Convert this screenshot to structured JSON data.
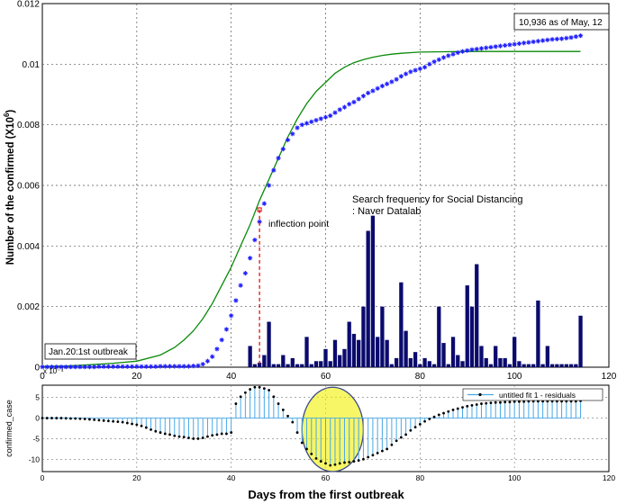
{
  "figure": {
    "xlabel": "Days from the first outbreak"
  },
  "chart_data": [
    {
      "type": "scatter",
      "ylabel": "Number of the confirmed (X10",
      "ylabel_exp": "6",
      "ylabel_close": ")",
      "xlim": [
        0,
        120
      ],
      "ylim": [
        0,
        0.012
      ],
      "xticks": [
        "0",
        "20",
        "40",
        "60",
        "80",
        "100",
        "120"
      ],
      "yticks": [
        "0",
        "0.002",
        "0.004",
        "0.006",
        "0.008",
        "0.01",
        "0.012"
      ],
      "grid": true,
      "colors": {
        "confirmed": "#2020ff",
        "fit": "#0a8a0a",
        "bars": "#0a0a6e",
        "inflection": "#e00000"
      },
      "series": [
        {
          "role": "confirmed",
          "x": [
            0,
            1,
            2,
            3,
            4,
            5,
            6,
            7,
            8,
            9,
            10,
            11,
            12,
            13,
            14,
            15,
            16,
            17,
            18,
            19,
            20,
            21,
            22,
            23,
            24,
            25,
            26,
            27,
            28,
            29,
            30,
            31,
            32,
            33,
            34,
            35,
            36,
            37,
            38,
            39,
            40,
            41,
            42,
            43,
            44,
            45,
            46,
            47,
            48,
            49,
            50,
            51,
            52,
            53,
            54,
            55,
            56,
            57,
            58,
            59,
            60,
            61,
            62,
            63,
            64,
            65,
            66,
            67,
            68,
            69,
            70,
            71,
            72,
            73,
            74,
            75,
            76,
            77,
            78,
            79,
            80,
            81,
            82,
            83,
            84,
            85,
            86,
            87,
            88,
            89,
            90,
            91,
            92,
            93,
            94,
            95,
            96,
            97,
            98,
            99,
            100,
            101,
            102,
            103,
            104,
            105,
            106,
            107,
            108,
            109,
            110,
            111,
            112,
            113,
            114
          ],
          "y": [
            1e-05,
            1e-05,
            1e-05,
            1e-05,
            1e-05,
            1e-05,
            1e-05,
            1e-05,
            1e-05,
            1e-05,
            1e-05,
            1e-05,
            2e-05,
            2e-05,
            2e-05,
            2e-05,
            2e-05,
            2e-05,
            2e-05,
            2e-05,
            2e-05,
            2e-05,
            2e-05,
            2e-05,
            2e-05,
            3e-05,
            3e-05,
            3e-05,
            3e-05,
            3e-05,
            3e-05,
            3e-05,
            4e-05,
            5e-05,
            0.0001,
            0.0002,
            0.00035,
            0.0006,
            0.0009,
            0.00125,
            0.0017,
            0.0022,
            0.0027,
            0.0031,
            0.0036,
            0.0042,
            0.0048,
            0.0054,
            0.006,
            0.0065,
            0.0069,
            0.0072,
            0.0075,
            0.0077,
            0.0079,
            0.008,
            0.00805,
            0.0081,
            0.00815,
            0.0082,
            0.00825,
            0.0083,
            0.0084,
            0.0085,
            0.00858,
            0.00868,
            0.00875,
            0.00885,
            0.00895,
            0.00905,
            0.00912,
            0.0092,
            0.00928,
            0.00935,
            0.00942,
            0.0095,
            0.0096,
            0.00968,
            0.00975,
            0.0098,
            0.00985,
            0.0099,
            0.01,
            0.01008,
            0.01015,
            0.01022,
            0.01028,
            0.01033,
            0.01038,
            0.01042,
            0.01045,
            0.01048,
            0.0105,
            0.01052,
            0.01054,
            0.01056,
            0.01058,
            0.0106,
            0.01062,
            0.01064,
            0.01066,
            0.01068,
            0.0107,
            0.01072,
            0.01074,
            0.01076,
            0.01078,
            0.0108,
            0.01082,
            0.01083,
            0.01084,
            0.01086,
            0.01088,
            0.01091,
            0.01094
          ]
        },
        {
          "role": "fit",
          "x": [
            0,
            5,
            10,
            15,
            20,
            25,
            28,
            30,
            32,
            34,
            36,
            38,
            40,
            42,
            44,
            46,
            48,
            50,
            52,
            54,
            56,
            58,
            60,
            62,
            64,
            66,
            68,
            70,
            72,
            74,
            76,
            78,
            80,
            85,
            90,
            95,
            100,
            105,
            110,
            114
          ],
          "y": [
            2e-05,
            4e-05,
            8e-05,
            0.00013,
            0.0002,
            0.0004,
            0.00065,
            0.0009,
            0.0012,
            0.0016,
            0.0021,
            0.0027,
            0.0033,
            0.004,
            0.0047,
            0.0055,
            0.0062,
            0.0069,
            0.0076,
            0.0082,
            0.0087,
            0.0091,
            0.0094,
            0.0097,
            0.0099,
            0.01005,
            0.01015,
            0.01023,
            0.01029,
            0.01033,
            0.01036,
            0.01038,
            0.0104,
            0.01041,
            0.01042,
            0.01042,
            0.01042,
            0.01042,
            0.01042,
            0.01042
          ]
        },
        {
          "role": "search-frequency-bars",
          "x": [
            44,
            45,
            46,
            47,
            48,
            49,
            50,
            51,
            52,
            53,
            54,
            55,
            56,
            57,
            58,
            59,
            60,
            61,
            62,
            63,
            64,
            65,
            66,
            67,
            68,
            69,
            70,
            71,
            72,
            73,
            74,
            75,
            76,
            77,
            78,
            79,
            80,
            81,
            82,
            83,
            84,
            85,
            86,
            87,
            88,
            89,
            90,
            91,
            92,
            93,
            94,
            95,
            96,
            97,
            98,
            99,
            100,
            101,
            102,
            103,
            104,
            105,
            106,
            107,
            108,
            109,
            110,
            111,
            112,
            113,
            114
          ],
          "y": [
            0.0007,
            0.0001,
            0.00015,
            0.0004,
            0.0015,
            0.0001,
            0.0001,
            0.0004,
            0.0001,
            0.0003,
            0.0001,
            0.0001,
            0.001,
            0.0001,
            0.0002,
            0.0002,
            0.0006,
            0.0002,
            0.0009,
            0.0004,
            0.0006,
            0.0015,
            0.0011,
            0.0009,
            0.002,
            0.0045,
            0.005,
            0.001,
            0.002,
            0.0009,
            0.0001,
            0.0003,
            0.0028,
            0.0012,
            0.0003,
            0.0005,
            0.0001,
            0.0003,
            0.0002,
            0.0001,
            0.002,
            0.0008,
            0.0001,
            0.001,
            0.0004,
            0.0002,
            0.0027,
            0.002,
            0.0034,
            0.0007,
            0.0003,
            0.0001,
            0.0007,
            0.0003,
            0.0003,
            0.0001,
            0.001,
            0.0002,
            0.0001,
            0.0001,
            0.0001,
            0.0022,
            0.0001,
            0.0007,
            0.0001,
            0.0001,
            0.0001,
            0.0001,
            0.0001,
            0.0001,
            0.0017
          ]
        }
      ],
      "inflection": {
        "x": 46,
        "y": 0.0052
      },
      "annotations": {
        "outbreak_box": "Jan.20:1st outbreak",
        "latest_box": "10,936 as of May, 12",
        "inflection_label": "inflection point",
        "search_line1": "Search frequency for Social Distancing",
        "search_line2": ": Naver Datalab",
        "bar_exponent": "x 10⁻⁴"
      }
    },
    {
      "type": "line",
      "ylabel": "confirmed_case",
      "xlim": [
        0,
        120
      ],
      "ylim": [
        -13,
        8
      ],
      "xticks": [
        "0",
        "20",
        "40",
        "60",
        "80",
        "100",
        "120"
      ],
      "yticks": [
        "-10",
        "-5",
        "0",
        "5"
      ],
      "grid": true,
      "legend": {
        "label": "untitled fit 1 - residuals",
        "position": "top-right"
      },
      "colors": {
        "stems": "#4aa8e6",
        "markers": "#000000",
        "ellipse_fill": "#f2f000",
        "ellipse_stroke": "#3a4a8a"
      },
      "highlight": {
        "x_range": [
          55,
          68
        ],
        "y_range": [
          -13,
          7.5
        ]
      },
      "series": [
        {
          "name": "untitled fit 1 - residuals",
          "x": [
            0,
            1,
            2,
            3,
            4,
            5,
            6,
            7,
            8,
            9,
            10,
            11,
            12,
            13,
            14,
            15,
            16,
            17,
            18,
            19,
            20,
            21,
            22,
            23,
            24,
            25,
            26,
            27,
            28,
            29,
            30,
            31,
            32,
            33,
            34,
            35,
            36,
            37,
            38,
            39,
            40,
            41,
            42,
            43,
            44,
            45,
            46,
            47,
            48,
            49,
            50,
            51,
            52,
            53,
            54,
            55,
            56,
            57,
            58,
            59,
            60,
            61,
            62,
            63,
            64,
            65,
            66,
            67,
            68,
            69,
            70,
            71,
            72,
            73,
            74,
            75,
            76,
            77,
            78,
            79,
            80,
            81,
            82,
            83,
            84,
            85,
            86,
            87,
            88,
            89,
            90,
            91,
            92,
            93,
            94,
            95,
            96,
            97,
            98,
            99,
            100,
            101,
            102,
            103,
            104,
            105,
            106,
            107,
            108,
            109,
            110,
            111,
            112,
            113,
            114
          ],
          "y": [
            0,
            0,
            0,
            0,
            0,
            -0.05,
            -0.1,
            -0.1,
            -0.15,
            -0.2,
            -0.3,
            -0.4,
            -0.5,
            -0.6,
            -0.7,
            -0.8,
            -0.9,
            -1.0,
            -1.2,
            -1.4,
            -1.6,
            -1.9,
            -2.3,
            -2.8,
            -3.2,
            -3.5,
            -3.8,
            -4.0,
            -4.3,
            -4.5,
            -4.6,
            -4.8,
            -5.0,
            -5.0,
            -4.8,
            -4.5,
            -4.2,
            -4.0,
            -3.8,
            -3.8,
            -3.5,
            3.5,
            5.2,
            6.2,
            7.0,
            7.5,
            7.5,
            7.2,
            6.8,
            5.2,
            3.5,
            2.0,
            0.5,
            -1.0,
            -3.5,
            -6.0,
            -7.5,
            -8.7,
            -9.8,
            -10.5,
            -11.0,
            -11.5,
            -11.3,
            -11.0,
            -10.8,
            -10.7,
            -10.5,
            -10.3,
            -10.0,
            -9.5,
            -9.0,
            -8.5,
            -8.0,
            -7.5,
            -6.5,
            -5.5,
            -4.7,
            -4.0,
            -3.0,
            -2.2,
            -1.5,
            -0.8,
            -0.2,
            0.3,
            0.8,
            1.2,
            1.6,
            2.0,
            2.3,
            2.6,
            2.9,
            3.1,
            3.3,
            3.5,
            3.6,
            3.7,
            3.8,
            3.8,
            3.9,
            3.9,
            4.0,
            4.0,
            4.0,
            4.1,
            4.1,
            4.1,
            4.1,
            4.1,
            4.1,
            4.1,
            4.1,
            4.1,
            4.1,
            4.1,
            4.2
          ]
        }
      ]
    }
  ]
}
